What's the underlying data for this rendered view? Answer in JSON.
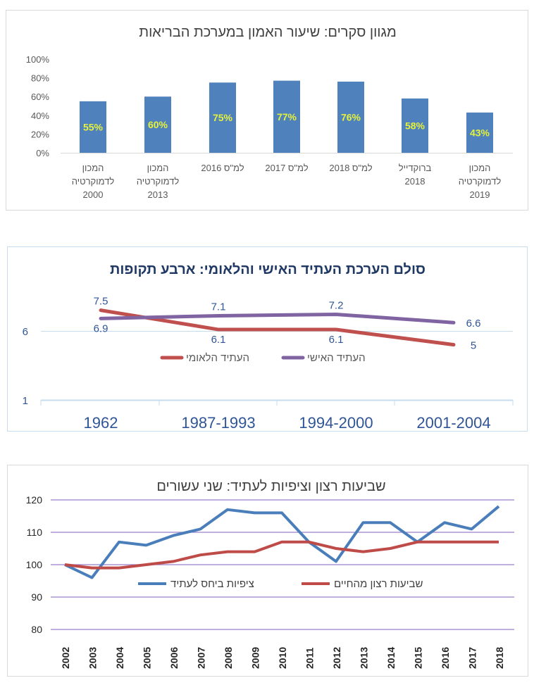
{
  "chart_data": [
    {
      "type": "bar",
      "title": "מגוון סקרים: שיעור האמון במערכת הבריאות",
      "categories": [
        [
          "המכון",
          "לדמוקרטיה",
          "2000"
        ],
        [
          "המכון",
          "לדמוקרטיה",
          "2013"
        ],
        [
          "למ\"ס 2016"
        ],
        [
          "למ\"ס 2017"
        ],
        [
          "למ\"ס 2018"
        ],
        [
          "ברוקדייל",
          "2018"
        ],
        [
          "המכון",
          "לדמוקרטיה",
          "2019"
        ]
      ],
      "values": [
        55,
        60,
        75,
        77,
        76,
        58,
        43
      ],
      "data_labels": [
        "55%",
        "60%",
        "75%",
        "77%",
        "76%",
        "58%",
        "43%"
      ],
      "yticks": [
        "0%",
        "20%",
        "40%",
        "60%",
        "80%",
        "100%"
      ],
      "ylim": [
        0,
        100
      ],
      "grid": false,
      "colors": {
        "bar": "#4f81bd",
        "label": "#e6f23a"
      }
    },
    {
      "type": "line",
      "title": "סולם הערכת העתיד האישי והלאומי: ארבע תקופות",
      "categories": [
        "1962",
        "1987-1993",
        "1994-2000",
        "2001-2004"
      ],
      "series": [
        {
          "name": "העתיד הלאומי",
          "values": [
            7.5,
            6.1,
            6.1,
            5
          ],
          "labels": [
            "7.5",
            "6.1",
            "6.1",
            "5"
          ],
          "color": "#c0504d"
        },
        {
          "name": "העתיד האישי",
          "values": [
            6.9,
            7.1,
            7.2,
            6.6
          ],
          "labels": [
            "6.9",
            "7.1",
            "7.2",
            "6.6"
          ],
          "color": "#8064a2"
        }
      ],
      "yticks": [
        "1",
        "6"
      ],
      "ylim": [
        1,
        11
      ],
      "grid": true,
      "legend": "inside-middle"
    },
    {
      "type": "line",
      "title": "שביעות רצון וציפיות לעתיד: שני עשורים",
      "categories": [
        "2002",
        "2003",
        "2004",
        "2005",
        "2006",
        "2007",
        "2008",
        "2009",
        "2010",
        "2011",
        "2012",
        "2013",
        "2014",
        "2015",
        "2016",
        "2017",
        "2018"
      ],
      "series": [
        {
          "name": "ציפיות ביחס לעתיד",
          "values": [
            100,
            96,
            107,
            106,
            109,
            111,
            117,
            116,
            116,
            107,
            101,
            113,
            113,
            107,
            113,
            111,
            118
          ],
          "color": "#4a7ebb"
        },
        {
          "name": "שביעות רצון מהחיים",
          "values": [
            100,
            99,
            99,
            100,
            101,
            103,
            104,
            104,
            107,
            107,
            105,
            104,
            105,
            107,
            107,
            107,
            107
          ],
          "color": "#be4b48"
        }
      ],
      "yticks": [
        "80",
        "90",
        "100",
        "110",
        "120"
      ],
      "ylim": [
        80,
        120
      ],
      "grid": true,
      "legend": "inside-bottom"
    }
  ]
}
